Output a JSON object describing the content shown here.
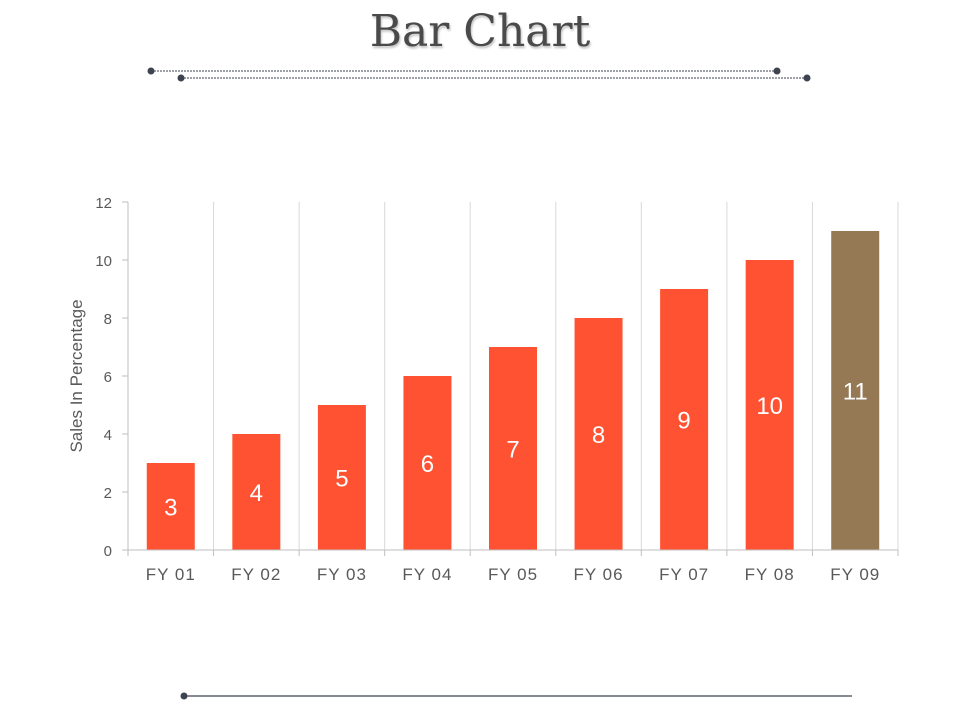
{
  "page": {
    "title": "Bar Chart"
  },
  "colors": {
    "bar": "#ff5233",
    "highlight": "#957955",
    "grid": "#d9d9d9",
    "axis_text": "#595959",
    "decor_line": "#3d4450"
  },
  "chart_data": {
    "type": "bar",
    "categories": [
      "FY 01",
      "FY 02",
      "FY 03",
      "FY 04",
      "FY 05",
      "FY 06",
      "FY 07",
      "FY 08",
      "FY 09"
    ],
    "values": [
      3,
      4,
      5,
      6,
      7,
      8,
      9,
      10,
      11
    ],
    "data_labels": [
      "3",
      "4",
      "5",
      "6",
      "7",
      "8",
      "9",
      "10",
      "11"
    ],
    "highlight_index": 8,
    "ylabel": "Sales In Percentage",
    "xlabel": "",
    "ylim": [
      0,
      12
    ],
    "yticks": [
      0,
      2,
      4,
      6,
      8,
      10,
      12
    ],
    "ytick_labels": [
      "0",
      "2",
      "4",
      "6",
      "8",
      "10",
      "12"
    ],
    "grid": "vertical"
  }
}
